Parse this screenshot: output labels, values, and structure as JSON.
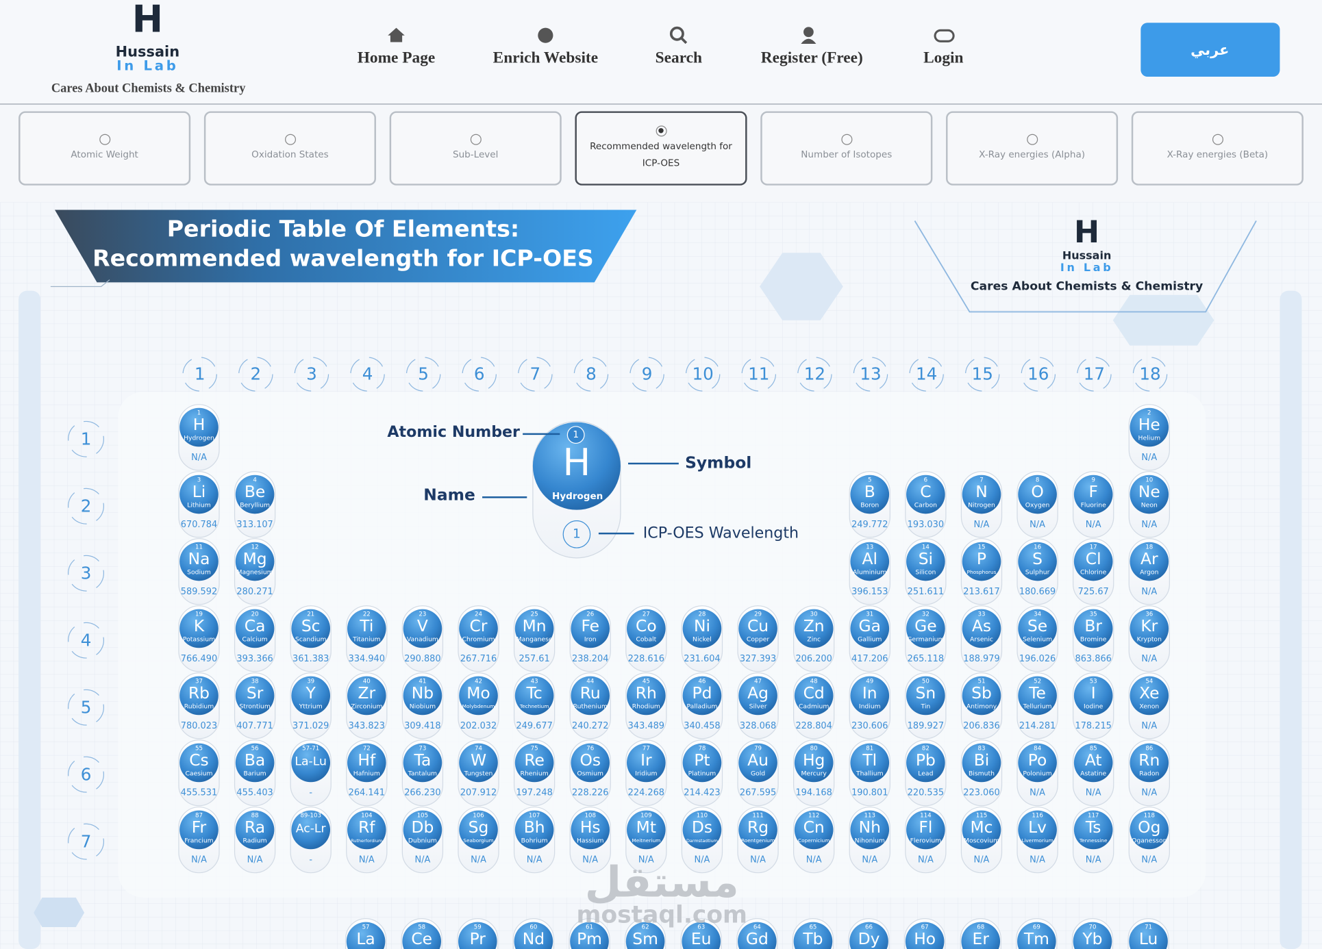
{
  "header": {
    "logo_title": "Hussain",
    "logo_sub": "In Lab",
    "tagline": "Cares About Chemists & Chemistry",
    "nav": [
      "Home Page",
      "Enrich Website",
      "Search",
      "Register (Free)",
      "Login"
    ],
    "lang_button": "عربي"
  },
  "options": {
    "labels": [
      "Atomic Weight",
      "Oxidation States",
      "Sub-Level",
      "Recommended wavelength for ICP-OES",
      "Number of Isotopes",
      "X-Ray energies (Alpha)",
      "X-Ray energies (Beta)"
    ],
    "selected": 3
  },
  "banner": {
    "line1": "Periodic Table Of Elements:",
    "line2": "Recommended wavelength for ICP-OES"
  },
  "side_logo": {
    "title": "Hussain",
    "sub": "In Lab",
    "tagline": "Cares About Chemists & Chemistry"
  },
  "groups": [
    "1",
    "2",
    "3",
    "4",
    "5",
    "6",
    "7",
    "8",
    "9",
    "10",
    "11",
    "12",
    "13",
    "14",
    "15",
    "16",
    "17",
    "18"
  ],
  "periods": [
    "1",
    "2",
    "3",
    "4",
    "5",
    "6",
    "7"
  ],
  "legend": {
    "atomic_number": "Atomic Number",
    "symbol": "Symbol",
    "name": "Name",
    "wavelength": "ICP-OES Wavelength",
    "sample": {
      "number": "1",
      "symbol": "H",
      "name": "Hydrogen",
      "value": "1"
    }
  },
  "elements": [
    {
      "number": "1",
      "symbol": "H",
      "name": "Hydrogen",
      "value": "N/A"
    },
    {
      "number": "2",
      "symbol": "He",
      "name": "Helium",
      "value": "N/A"
    },
    {
      "number": "3",
      "symbol": "Li",
      "name": "Lithium",
      "value": "670.784"
    },
    {
      "number": "4",
      "symbol": "Be",
      "name": "Beryllium",
      "value": "313.107"
    },
    {
      "number": "5",
      "symbol": "B",
      "name": "Boron",
      "value": "249.772"
    },
    {
      "number": "6",
      "symbol": "C",
      "name": "Carbon",
      "value": "193.030"
    },
    {
      "number": "7",
      "symbol": "N",
      "name": "Nitrogen",
      "value": "N/A"
    },
    {
      "number": "8",
      "symbol": "O",
      "name": "Oxygen",
      "value": "N/A"
    },
    {
      "number": "9",
      "symbol": "F",
      "name": "Fluorine",
      "value": "N/A"
    },
    {
      "number": "10",
      "symbol": "Ne",
      "name": "Neon",
      "value": "N/A"
    },
    {
      "number": "11",
      "symbol": "Na",
      "name": "Sodium",
      "value": "589.592"
    },
    {
      "number": "12",
      "symbol": "Mg",
      "name": "Magnesium",
      "value": "280.271"
    },
    {
      "number": "13",
      "symbol": "Al",
      "name": "Aluminium",
      "value": "396.153"
    },
    {
      "number": "14",
      "symbol": "Si",
      "name": "Silicon",
      "value": "251.611"
    },
    {
      "number": "15",
      "symbol": "P",
      "name": "Phosphorus",
      "value": "213.617"
    },
    {
      "number": "16",
      "symbol": "S",
      "name": "Sulphur",
      "value": "180.669"
    },
    {
      "number": "17",
      "symbol": "Cl",
      "name": "Chlorine",
      "value": "725.67"
    },
    {
      "number": "18",
      "symbol": "Ar",
      "name": "Argon",
      "value": "N/A"
    },
    {
      "number": "19",
      "symbol": "K",
      "name": "Potassium",
      "value": "766.490"
    },
    {
      "number": "20",
      "symbol": "Ca",
      "name": "Calcium",
      "value": "393.366"
    },
    {
      "number": "21",
      "symbol": "Sc",
      "name": "Scandium",
      "value": "361.383"
    },
    {
      "number": "22",
      "symbol": "Ti",
      "name": "Titanium",
      "value": "334.940"
    },
    {
      "number": "23",
      "symbol": "V",
      "name": "Vanadium",
      "value": "290.880"
    },
    {
      "number": "24",
      "symbol": "Cr",
      "name": "Chromium",
      "value": "267.716"
    },
    {
      "number": "25",
      "symbol": "Mn",
      "name": "Manganese",
      "value": "257.61"
    },
    {
      "number": "26",
      "symbol": "Fe",
      "name": "Iron",
      "value": "238.204"
    },
    {
      "number": "27",
      "symbol": "Co",
      "name": "Cobalt",
      "value": "228.616"
    },
    {
      "number": "28",
      "symbol": "Ni",
      "name": "Nickel",
      "value": "231.604"
    },
    {
      "number": "29",
      "symbol": "Cu",
      "name": "Copper",
      "value": "327.393"
    },
    {
      "number": "30",
      "symbol": "Zn",
      "name": "Zinc",
      "value": "206.200"
    },
    {
      "number": "31",
      "symbol": "Ga",
      "name": "Gallium",
      "value": "417.206"
    },
    {
      "number": "32",
      "symbol": "Ge",
      "name": "Germanium",
      "value": "265.118"
    },
    {
      "number": "33",
      "symbol": "As",
      "name": "Arsenic",
      "value": "188.979"
    },
    {
      "number": "34",
      "symbol": "Se",
      "name": "Selenium",
      "value": "196.026"
    },
    {
      "number": "35",
      "symbol": "Br",
      "name": "Bromine",
      "value": "863.866"
    },
    {
      "number": "36",
      "symbol": "Kr",
      "name": "Krypton",
      "value": "N/A"
    },
    {
      "number": "37",
      "symbol": "Rb",
      "name": "Rubidium",
      "value": "780.023"
    },
    {
      "number": "38",
      "symbol": "Sr",
      "name": "Strontium",
      "value": "407.771"
    },
    {
      "number": "39",
      "symbol": "Y",
      "name": "Yttrium",
      "value": "371.029"
    },
    {
      "number": "40",
      "symbol": "Zr",
      "name": "Zirconium",
      "value": "343.823"
    },
    {
      "number": "41",
      "symbol": "Nb",
      "name": "Niobium",
      "value": "309.418"
    },
    {
      "number": "42",
      "symbol": "Mo",
      "name": "Molybdenum",
      "value": "202.032"
    },
    {
      "number": "43",
      "symbol": "Tc",
      "name": "Technetium",
      "value": "249.677"
    },
    {
      "number": "44",
      "symbol": "Ru",
      "name": "Ruthenium",
      "value": "240.272"
    },
    {
      "number": "45",
      "symbol": "Rh",
      "name": "Rhodium",
      "value": "343.489"
    },
    {
      "number": "46",
      "symbol": "Pd",
      "name": "Palladium",
      "value": "340.458"
    },
    {
      "number": "47",
      "symbol": "Ag",
      "name": "Silver",
      "value": "328.068"
    },
    {
      "number": "48",
      "symbol": "Cd",
      "name": "Cadmium",
      "value": "228.804"
    },
    {
      "number": "49",
      "symbol": "In",
      "name": "Indium",
      "value": "230.606"
    },
    {
      "number": "50",
      "symbol": "Sn",
      "name": "Tin",
      "value": "189.927"
    },
    {
      "number": "51",
      "symbol": "Sb",
      "name": "Antimony",
      "value": "206.836"
    },
    {
      "number": "52",
      "symbol": "Te",
      "name": "Tellurium",
      "value": "214.281"
    },
    {
      "number": "53",
      "symbol": "I",
      "name": "Iodine",
      "value": "178.215"
    },
    {
      "number": "54",
      "symbol": "Xe",
      "name": "Xenon",
      "value": "N/A"
    },
    {
      "number": "55",
      "symbol": "Cs",
      "name": "Caesium",
      "value": "455.531"
    },
    {
      "number": "56",
      "symbol": "Ba",
      "name": "Barium",
      "value": "455.403"
    },
    {
      "number": "57-71",
      "symbol": "La-Lu",
      "value": "-"
    },
    {
      "number": "72",
      "symbol": "Hf",
      "name": "Hafnium",
      "value": "264.141"
    },
    {
      "number": "73",
      "symbol": "Ta",
      "name": "Tantalum",
      "value": "266.230"
    },
    {
      "number": "74",
      "symbol": "W",
      "name": "Tungsten",
      "value": "207.912"
    },
    {
      "number": "75",
      "symbol": "Re",
      "name": "Rhenium",
      "value": "197.248"
    },
    {
      "number": "76",
      "symbol": "Os",
      "name": "Osmium",
      "value": "228.226"
    },
    {
      "number": "77",
      "symbol": "Ir",
      "name": "Iridium",
      "value": "224.268"
    },
    {
      "number": "78",
      "symbol": "Pt",
      "name": "Platinum",
      "value": "214.423"
    },
    {
      "number": "79",
      "symbol": "Au",
      "name": "Gold",
      "value": "267.595"
    },
    {
      "number": "80",
      "symbol": "Hg",
      "name": "Mercury",
      "value": "194.168"
    },
    {
      "number": "81",
      "symbol": "Tl",
      "name": "Thallium",
      "value": "190.801"
    },
    {
      "number": "82",
      "symbol": "Pb",
      "name": "Lead",
      "value": "220.535"
    },
    {
      "number": "83",
      "symbol": "Bi",
      "name": "Bismuth",
      "value": "223.060"
    },
    {
      "number": "84",
      "symbol": "Po",
      "name": "Polonium",
      "value": "N/A"
    },
    {
      "number": "85",
      "symbol": "At",
      "name": "Astatine",
      "value": "N/A"
    },
    {
      "number": "86",
      "symbol": "Rn",
      "name": "Radon",
      "value": "N/A"
    },
    {
      "number": "87",
      "symbol": "Fr",
      "name": "Francium",
      "value": "N/A"
    },
    {
      "number": "88",
      "symbol": "Ra",
      "name": "Radium",
      "value": "N/A"
    },
    {
      "number": "89-103",
      "symbol": "Ac-Lr",
      "value": "-"
    },
    {
      "number": "104",
      "symbol": "Rf",
      "name": "Rutherfordium",
      "value": "N/A"
    },
    {
      "number": "105",
      "symbol": "Db",
      "name": "Dubnium",
      "value": "N/A"
    },
    {
      "number": "106",
      "symbol": "Sg",
      "name": "Seaborgium",
      "value": "N/A"
    },
    {
      "number": "107",
      "symbol": "Bh",
      "name": "Bohrium",
      "value": "N/A"
    },
    {
      "number": "108",
      "symbol": "Hs",
      "name": "Hassium",
      "value": "N/A"
    },
    {
      "number": "109",
      "symbol": "Mt",
      "name": "Meitnerium",
      "value": "N/A"
    },
    {
      "number": "110",
      "symbol": "Ds",
      "name": "Darmstadtium",
      "value": "N/A"
    },
    {
      "number": "111",
      "symbol": "Rg",
      "name": "Roentgenium",
      "value": "N/A"
    },
    {
      "number": "112",
      "symbol": "Cn",
      "name": "Copernicium",
      "value": "N/A"
    },
    {
      "number": "113",
      "symbol": "Nh",
      "name": "Nihonium",
      "value": "N/A"
    },
    {
      "number": "114",
      "symbol": "Fl",
      "name": "Flerovium",
      "value": "N/A"
    },
    {
      "number": "115",
      "symbol": "Mc",
      "name": "Moscovium",
      "value": "N/A"
    },
    {
      "number": "116",
      "symbol": "Lv",
      "name": "Livermorium",
      "value": "N/A"
    },
    {
      "number": "117",
      "symbol": "Ts",
      "name": "Tennessine",
      "value": "N/A"
    },
    {
      "number": "118",
      "symbol": "Og",
      "name": "Oganesson",
      "value": "N/A"
    }
  ],
  "lanthanides": [
    {
      "number": "57",
      "symbol": "La"
    },
    {
      "number": "58",
      "symbol": "Ce"
    },
    {
      "number": "59",
      "symbol": "Pr"
    },
    {
      "number": "60",
      "symbol": "Nd"
    },
    {
      "number": "61",
      "symbol": "Pm"
    },
    {
      "number": "62",
      "symbol": "Sm"
    },
    {
      "number": "63",
      "symbol": "Eu"
    },
    {
      "number": "64",
      "symbol": "Gd"
    },
    {
      "number": "65",
      "symbol": "Tb"
    },
    {
      "number": "66",
      "symbol": "Dy"
    },
    {
      "number": "67",
      "symbol": "Ho"
    },
    {
      "number": "68",
      "symbol": "Er"
    },
    {
      "number": "69",
      "symbol": "Tm"
    },
    {
      "number": "70",
      "symbol": "Yb"
    },
    {
      "number": "71",
      "symbol": "Lu"
    }
  ],
  "watermark": {
    "arabic": "مستقل",
    "latin": "mostaql.com"
  }
}
